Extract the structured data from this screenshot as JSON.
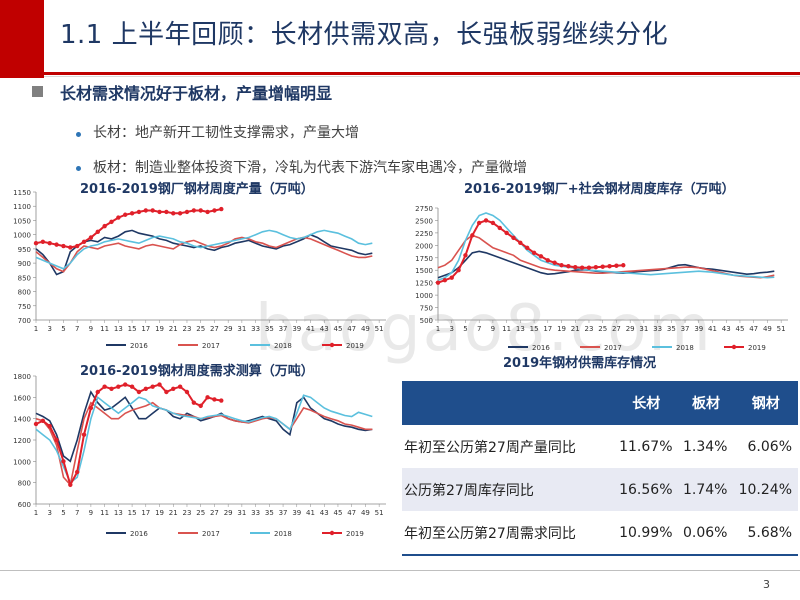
{
  "slide": {
    "title": "1.1 上半年回顾：长材供需双高，长强板弱继续分化",
    "heading": "长材需求情况好于板材，产量增幅明显",
    "bullets": [
      "长材：地产新开工韧性支撑需求，产量大增",
      "板材：制造业整体投资下滑，冷轧为代表下游汽车家电遇冷，产量微增"
    ],
    "page_number": "3",
    "watermark": "baogao8.com",
    "colors": {
      "accent_red": "#c00000",
      "navy": "#1f3864",
      "table_header": "#1f4e8c"
    }
  },
  "table": {
    "title": "2019年钢材供需库存情况",
    "headers": [
      "",
      "长材",
      "板材",
      "钢材"
    ],
    "rows": [
      {
        "label": "年初至公历第27周产量同比",
        "values": [
          "11.67%",
          "1.34%",
          "6.06%"
        ]
      },
      {
        "label": "公历第27周库存同比",
        "values": [
          "16.56%",
          "1.74%",
          "10.24%"
        ]
      },
      {
        "label": "年初至公历第27周需求同比",
        "values": [
          "10.99%",
          "0.06%",
          "5.68%"
        ]
      }
    ]
  },
  "chart_data": [
    {
      "type": "line",
      "title": "2016-2019钢厂钢材周度产量（万吨）",
      "ylim": [
        700,
        1150
      ],
      "yticks": [
        "1150",
        "1100",
        "1050",
        "1000",
        "950",
        "900",
        "850",
        "800",
        "750",
        "700"
      ],
      "xticks": [
        "1",
        "3",
        "5",
        "7",
        "9",
        "11",
        "13",
        "15",
        "17",
        "19",
        "21",
        "23",
        "25",
        "27",
        "29",
        "31",
        "33",
        "35",
        "37",
        "39",
        "41",
        "43",
        "45",
        "47",
        "49",
        "51"
      ],
      "series": [
        {
          "name": "2016",
          "color": "#1f3864",
          "values": [
            950,
            930,
            900,
            860,
            870,
            940,
            960,
            975,
            980,
            975,
            990,
            985,
            995,
            1010,
            1015,
            1005,
            1000,
            995,
            985,
            980,
            970,
            965,
            960,
            955,
            960,
            950,
            945,
            955,
            960,
            970,
            975,
            980,
            970,
            960,
            955,
            950,
            960,
            965,
            975,
            985,
            1000,
            990,
            975,
            960,
            955,
            950,
            945,
            935,
            930,
            935
          ]
        },
        {
          "name": "2017",
          "color": "#d9534f",
          "values": [
            940,
            920,
            900,
            880,
            870,
            900,
            940,
            960,
            955,
            950,
            960,
            965,
            970,
            960,
            955,
            950,
            960,
            965,
            960,
            955,
            950,
            965,
            975,
            980,
            970,
            960,
            955,
            960,
            970,
            985,
            990,
            985,
            975,
            970,
            960,
            955,
            965,
            975,
            985,
            990,
            985,
            975,
            965,
            955,
            945,
            935,
            925,
            920,
            920,
            925
          ]
        },
        {
          "name": "2018",
          "color": "#5bc0de",
          "values": [
            920,
            910,
            900,
            890,
            880,
            900,
            930,
            950,
            960,
            965,
            975,
            980,
            985,
            980,
            975,
            970,
            980,
            990,
            995,
            990,
            985,
            975,
            970,
            960,
            955,
            960,
            965,
            970,
            975,
            980,
            985,
            990,
            1000,
            1010,
            1015,
            1010,
            1000,
            990,
            985,
            990,
            1000,
            1010,
            1015,
            1010,
            1005,
            995,
            985,
            970,
            965,
            970
          ]
        },
        {
          "name": "2019",
          "color": "#e0202a",
          "marker": true,
          "values": [
            970,
            975,
            970,
            965,
            960,
            955,
            960,
            975,
            990,
            1010,
            1030,
            1045,
            1060,
            1070,
            1075,
            1080,
            1085,
            1085,
            1080,
            1080,
            1075,
            1075,
            1080,
            1085,
            1085,
            1080,
            1085,
            1090
          ]
        }
      ]
    },
    {
      "type": "line",
      "title": "2016-2019钢厂+社会钢材周度库存（万吨）",
      "ylim": [
        500,
        2750
      ],
      "yticks": [
        "2750",
        "2500",
        "2250",
        "2000",
        "1750",
        "1500",
        "1250",
        "1000",
        "750",
        "500"
      ],
      "xticks": [
        "1",
        "3",
        "5",
        "7",
        "9",
        "11",
        "13",
        "15",
        "17",
        "19",
        "21",
        "23",
        "25",
        "27",
        "29",
        "31",
        "33",
        "35",
        "37",
        "39",
        "41",
        "43",
        "45",
        "47",
        "49",
        "51"
      ],
      "series": [
        {
          "name": "2016",
          "color": "#1f3864",
          "values": [
            1350,
            1400,
            1450,
            1550,
            1700,
            1850,
            1880,
            1850,
            1800,
            1750,
            1700,
            1650,
            1600,
            1550,
            1500,
            1450,
            1420,
            1430,
            1450,
            1470,
            1500,
            1510,
            1500,
            1480,
            1470,
            1460,
            1450,
            1440,
            1450,
            1470,
            1480,
            1490,
            1500,
            1520,
            1560,
            1600,
            1610,
            1580,
            1550,
            1530,
            1520,
            1500,
            1480,
            1460,
            1440,
            1420,
            1430,
            1450,
            1460,
            1480
          ]
        },
        {
          "name": "2017",
          "color": "#d9534f",
          "values": [
            1550,
            1600,
            1700,
            1900,
            2100,
            2200,
            2150,
            2050,
            1950,
            1900,
            1850,
            1800,
            1700,
            1650,
            1600,
            1550,
            1520,
            1500,
            1490,
            1480,
            1470,
            1460,
            1450,
            1440,
            1440,
            1450,
            1460,
            1470,
            1480,
            1490,
            1500,
            1510,
            1520,
            1530,
            1540,
            1550,
            1560,
            1560,
            1550,
            1520,
            1490,
            1460,
            1430,
            1400,
            1380,
            1370,
            1360,
            1350,
            1370,
            1400
          ]
        },
        {
          "name": "2018",
          "color": "#5bc0de",
          "values": [
            1300,
            1350,
            1450,
            1700,
            2100,
            2400,
            2600,
            2650,
            2600,
            2500,
            2350,
            2200,
            2050,
            1900,
            1800,
            1700,
            1650,
            1600,
            1580,
            1560,
            1540,
            1520,
            1500,
            1490,
            1480,
            1470,
            1460,
            1450,
            1440,
            1430,
            1420,
            1410,
            1420,
            1430,
            1440,
            1450,
            1460,
            1470,
            1480,
            1470,
            1460,
            1440,
            1420,
            1400,
            1390,
            1380,
            1370,
            1360,
            1350,
            1360
          ]
        },
        {
          "name": "2019",
          "color": "#e0202a",
          "marker": true,
          "values": [
            1250,
            1300,
            1350,
            1500,
            1800,
            2200,
            2450,
            2500,
            2450,
            2350,
            2250,
            2150,
            2050,
            1950,
            1850,
            1780,
            1700,
            1650,
            1600,
            1580,
            1560,
            1550,
            1550,
            1560,
            1570,
            1580,
            1590,
            1600
          ]
        }
      ]
    },
    {
      "type": "line",
      "title": "2016-2019钢材周度需求测算（万吨）",
      "ylim": [
        600,
        1800
      ],
      "yticks": [
        "1800",
        "1600",
        "1400",
        "1200",
        "1000",
        "800",
        "600"
      ],
      "xticks": [
        "1",
        "3",
        "5",
        "7",
        "9",
        "11",
        "13",
        "15",
        "17",
        "19",
        "21",
        "23",
        "25",
        "27",
        "29",
        "31",
        "33",
        "35",
        "37",
        "39",
        "41",
        "43",
        "45",
        "47",
        "49",
        "51"
      ],
      "series": [
        {
          "name": "2016",
          "color": "#1f3864",
          "values": [
            1450,
            1420,
            1380,
            1250,
            1050,
            1000,
            1200,
            1450,
            1650,
            1550,
            1480,
            1500,
            1550,
            1600,
            1500,
            1400,
            1400,
            1450,
            1500,
            1480,
            1420,
            1400,
            1450,
            1420,
            1380,
            1400,
            1420,
            1450,
            1400,
            1380,
            1370,
            1380,
            1400,
            1420,
            1400,
            1380,
            1300,
            1250,
            1550,
            1600,
            1500,
            1450,
            1400,
            1380,
            1350,
            1330,
            1320,
            1300,
            1290,
            1300
          ]
        },
        {
          "name": "2017",
          "color": "#d9534f",
          "values": [
            1400,
            1380,
            1300,
            1150,
            850,
            780,
            1100,
            1400,
            1550,
            1500,
            1450,
            1400,
            1400,
            1450,
            1480,
            1500,
            1520,
            1550,
            1500,
            1480,
            1450,
            1440,
            1430,
            1420,
            1400,
            1410,
            1420,
            1430,
            1400,
            1380,
            1370,
            1360,
            1380,
            1400,
            1410,
            1400,
            1350,
            1300,
            1400,
            1500,
            1480,
            1450,
            1420,
            1400,
            1380,
            1350,
            1340,
            1320,
            1300,
            1300
          ]
        },
        {
          "name": "2018",
          "color": "#5bc0de",
          "values": [
            1300,
            1250,
            1200,
            1100,
            950,
            800,
            850,
            1100,
            1400,
            1600,
            1550,
            1500,
            1450,
            1500,
            1550,
            1600,
            1580,
            1520,
            1500,
            1480,
            1450,
            1430,
            1420,
            1410,
            1400,
            1420,
            1430,
            1440,
            1420,
            1400,
            1380,
            1370,
            1390,
            1410,
            1420,
            1400,
            1350,
            1300,
            1450,
            1620,
            1600,
            1550,
            1500,
            1470,
            1450,
            1430,
            1420,
            1460,
            1440,
            1420
          ]
        },
        {
          "name": "2019",
          "color": "#e0202a",
          "marker": true,
          "values": [
            1350,
            1380,
            1330,
            1200,
            1000,
            780,
            900,
            1250,
            1500,
            1650,
            1700,
            1680,
            1700,
            1720,
            1700,
            1650,
            1680,
            1700,
            1720,
            1650,
            1680,
            1700,
            1650,
            1550,
            1520,
            1600,
            1580,
            1570
          ]
        }
      ]
    }
  ]
}
